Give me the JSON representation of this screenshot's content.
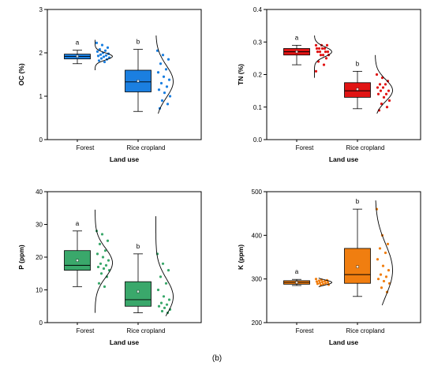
{
  "figure": {
    "caption": "(b)"
  },
  "chart_data": [
    {
      "type": "box",
      "ylabel": "OC (%)",
      "xlabel": "Land use",
      "ylim": [
        0,
        3
      ],
      "yticks": [
        0,
        1,
        2,
        3
      ],
      "categories": [
        "Forest",
        "Rice cropland"
      ],
      "groups": [
        {
          "category": "Forest",
          "color": "#1b7fe0",
          "letter": "a",
          "min": 1.75,
          "q1": 1.86,
          "median": 1.92,
          "q3": 1.97,
          "max": 2.06,
          "mean": 1.92,
          "points": [
            2.23,
            2.18,
            2.12,
            2.08,
            2.05,
            2.03,
            2.0,
            1.98,
            1.96,
            1.94,
            1.93,
            1.91,
            1.89,
            1.87,
            1.85,
            1.82,
            1.79
          ],
          "density_range": [
            1.6,
            2.3
          ]
        },
        {
          "category": "Rice cropland",
          "color": "#1b7fe0",
          "letter": "b",
          "min": 0.65,
          "q1": 1.1,
          "median": 1.33,
          "q3": 1.6,
          "max": 2.08,
          "mean": 1.35,
          "points": [
            2.05,
            1.95,
            1.85,
            1.75,
            1.62,
            1.55,
            1.45,
            1.38,
            1.3,
            1.22,
            1.15,
            1.08,
            1.0,
            0.9,
            0.82,
            0.72
          ],
          "density_range": [
            0.6,
            2.4
          ]
        }
      ]
    },
    {
      "type": "box",
      "ylabel": "TN (%)",
      "xlabel": "Land use",
      "ylim": [
        0,
        0.4
      ],
      "yticks": [
        0.0,
        0.1,
        0.2,
        0.3,
        0.4
      ],
      "categories": [
        "Forest",
        "Rice cropland"
      ],
      "groups": [
        {
          "category": "Forest",
          "color": "#e11414",
          "letter": "a",
          "min": 0.23,
          "q1": 0.26,
          "median": 0.27,
          "q3": 0.28,
          "max": 0.29,
          "mean": 0.27,
          "points": [
            0.29,
            0.29,
            0.29,
            0.28,
            0.28,
            0.28,
            0.28,
            0.27,
            0.27,
            0.27,
            0.27,
            0.26,
            0.26,
            0.26,
            0.25,
            0.24,
            0.23,
            0.21
          ],
          "density_range": [
            0.19,
            0.32
          ]
        },
        {
          "category": "Rice cropland",
          "color": "#e11414",
          "letter": "b",
          "min": 0.095,
          "q1": 0.13,
          "median": 0.15,
          "q3": 0.175,
          "max": 0.21,
          "mean": 0.155,
          "points": [
            0.2,
            0.19,
            0.18,
            0.17,
            0.17,
            0.16,
            0.16,
            0.15,
            0.15,
            0.14,
            0.14,
            0.13,
            0.12,
            0.11,
            0.1,
            0.09
          ],
          "density_range": [
            0.08,
            0.26
          ]
        }
      ]
    },
    {
      "type": "box",
      "ylabel": "P (ppm)",
      "xlabel": "Land use",
      "ylim": [
        0,
        40
      ],
      "yticks": [
        0,
        10,
        20,
        30,
        40
      ],
      "categories": [
        "Forest",
        "Rice cropland"
      ],
      "groups": [
        {
          "category": "Forest",
          "color": "#3aa86b",
          "letter": "a",
          "min": 11,
          "q1": 16,
          "median": 17.5,
          "q3": 22,
          "max": 28,
          "mean": 19,
          "points": [
            28,
            27,
            25,
            24,
            22,
            21,
            20,
            19,
            18,
            17.5,
            17,
            16.5,
            16,
            15,
            14,
            12,
            11
          ],
          "density_range": [
            3,
            34.5
          ]
        },
        {
          "category": "Rice cropland",
          "color": "#3aa86b",
          "letter": "b",
          "min": 3,
          "q1": 5,
          "median": 7,
          "q3": 12.5,
          "max": 21,
          "mean": 9.5,
          "points": [
            21,
            18,
            16,
            14,
            12,
            10,
            8,
            7,
            6,
            5.5,
            5,
            4.5,
            4,
            3.5,
            3
          ],
          "density_range": [
            2,
            32.5
          ]
        }
      ]
    },
    {
      "type": "box",
      "ylabel": "K (ppm)",
      "xlabel": "Land use",
      "ylim": [
        200,
        500
      ],
      "yticks": [
        200,
        300,
        400,
        500
      ],
      "categories": [
        "Forest",
        "Rice cropland"
      ],
      "groups": [
        {
          "category": "Forest",
          "color": "#f07e10",
          "letter": "a",
          "min": 285,
          "q1": 288,
          "median": 292,
          "q3": 296,
          "max": 299,
          "mean": 292,
          "points": [
            300,
            298,
            297,
            296,
            295,
            294,
            293,
            292,
            291,
            290,
            289,
            288,
            287,
            286
          ],
          "density_range": [
            282,
            302
          ]
        },
        {
          "category": "Rice cropland",
          "color": "#f07e10",
          "letter": "b",
          "min": 260,
          "q1": 290,
          "median": 310,
          "q3": 370,
          "max": 460,
          "mean": 328,
          "points": [
            460,
            400,
            380,
            370,
            360,
            345,
            330,
            320,
            310,
            305,
            300,
            295,
            290,
            280,
            270
          ],
          "density_range": [
            240,
            480
          ]
        }
      ]
    }
  ]
}
